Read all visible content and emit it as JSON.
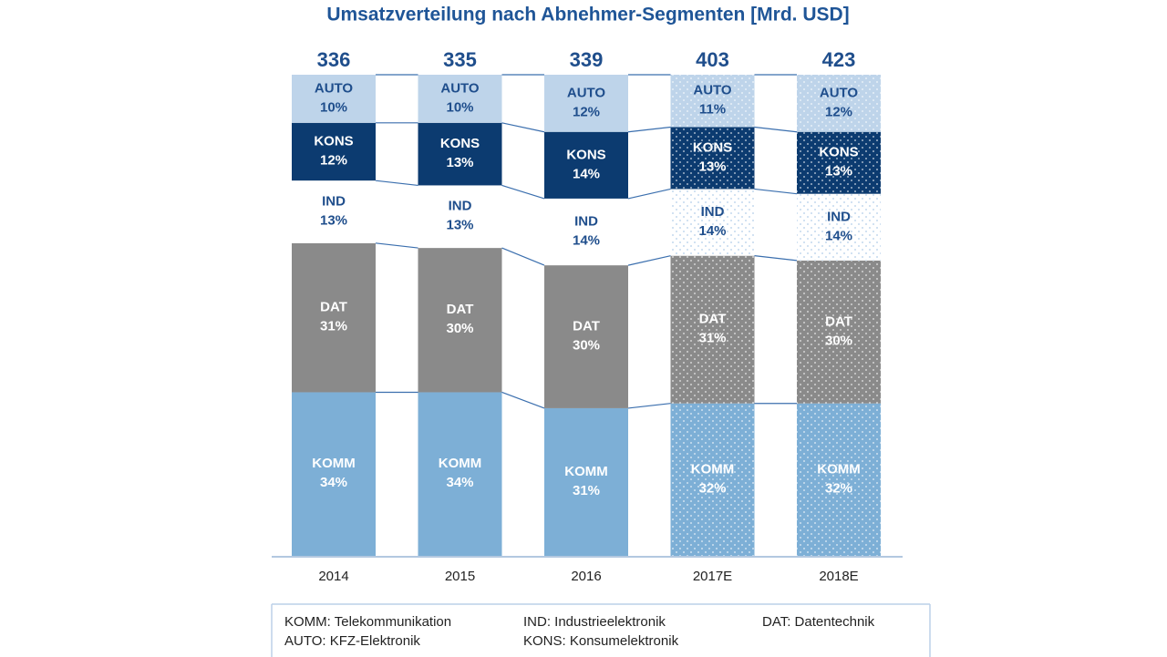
{
  "chart_data": {
    "type": "stacked_bar_100",
    "title": "Umsatzverteilung nach Abnehmer-Segmenten [Mrd. USD]",
    "categories": [
      "2014",
      "2015",
      "2016",
      "2017E",
      "2018E"
    ],
    "totals": [
      336,
      335,
      339,
      403,
      423
    ],
    "patterned": [
      false,
      false,
      false,
      true,
      true
    ],
    "series": [
      {
        "name": "KOMM",
        "color": "#7dafd6",
        "text_color": "#ffffff",
        "values": [
          34,
          34,
          31,
          32,
          32
        ],
        "value_labels": [
          "34%",
          "34%",
          "31%",
          "32%",
          "32%"
        ]
      },
      {
        "name": "DAT",
        "color": "#8a8a8a",
        "text_color": "#ffffff",
        "values": [
          31,
          30,
          30,
          31,
          30
        ],
        "value_labels": [
          "31%",
          "30%",
          "30%",
          "31%",
          "30%"
        ]
      },
      {
        "name": "IND",
        "color": "#ffffff",
        "text_color": "#1f4e8c",
        "values": [
          13,
          13,
          14,
          14,
          14
        ],
        "value_labels": [
          "13%",
          "13%",
          "14%",
          "14%",
          "14%"
        ]
      },
      {
        "name": "KONS",
        "color": "#0c3b70",
        "text_color": "#ffffff",
        "values": [
          12,
          13,
          14,
          13,
          13
        ],
        "value_labels": [
          "12%",
          "13%",
          "14%",
          "13%",
          "13%"
        ]
      },
      {
        "name": "AUTO",
        "color": "#bed4ea",
        "text_color": "#1f4e8c",
        "values": [
          10,
          10,
          12,
          11,
          12
        ],
        "value_labels": [
          "10%",
          "10%",
          "12%",
          "11%",
          "12%"
        ]
      }
    ],
    "legend_notes": [
      "KOMM: Telekommunikation",
      "IND: Industrieelektronik",
      "DAT: Datentechnik",
      "AUTO: KFZ-Elektronik",
      "KONS: Konsumelektronik"
    ]
  }
}
